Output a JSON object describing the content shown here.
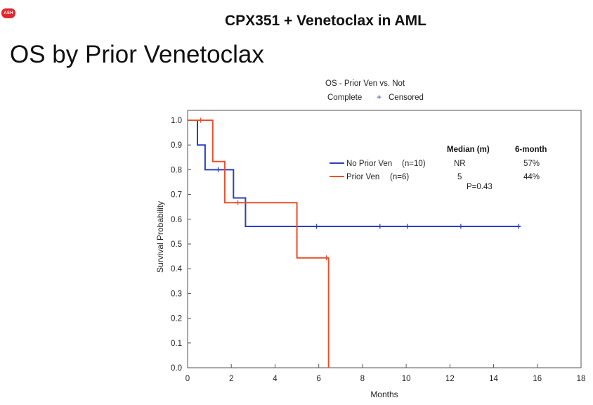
{
  "slide": {
    "logo_text": "ASH",
    "header_title": "CPX351 + Venetoclax in AML",
    "title": "OS by Prior Venetoclax"
  },
  "chart_data": {
    "type": "line",
    "subtype": "kaplan-meier-step",
    "title_lines": [
      "OS - Prior Ven vs. Not",
      "Complete"
    ],
    "censor_legend": "Censored",
    "censor_symbol": "+",
    "xlabel": "Months",
    "ylabel": "Survival Probability",
    "xlim": [
      0,
      18
    ],
    "ylim": [
      0,
      1
    ],
    "xticks": [
      0,
      2,
      4,
      6,
      8,
      10,
      12,
      14,
      16,
      18
    ],
    "yticks": [
      "0.0",
      "0.1",
      "0.2",
      "0.3",
      "0.4",
      "0.5",
      "0.6",
      "0.7",
      "0.8",
      "0.9",
      "1.0"
    ],
    "table_headers": [
      "Median (m)",
      "6-month"
    ],
    "p_value": "P=0.43",
    "series": [
      {
        "name": "No Prior Ven",
        "n_label": "(n=10)",
        "color": "#2b3fc1",
        "median": "NR",
        "six_month": "57%",
        "steps": [
          [
            0,
            1.0
          ],
          [
            0.45,
            1.0
          ],
          [
            0.45,
            0.9
          ],
          [
            0.8,
            0.9
          ],
          [
            0.8,
            0.8
          ],
          [
            2.1,
            0.8
          ],
          [
            2.1,
            0.686
          ],
          [
            2.65,
            0.686
          ],
          [
            2.65,
            0.571
          ],
          [
            15.2,
            0.571
          ]
        ],
        "censored": [
          [
            1.4,
            0.8
          ],
          [
            5.9,
            0.571
          ],
          [
            8.8,
            0.571
          ],
          [
            10.05,
            0.571
          ],
          [
            12.5,
            0.571
          ],
          [
            15.15,
            0.571
          ]
        ]
      },
      {
        "name": "Prior Ven",
        "n_label": "(n=6)",
        "color": "#e8512c",
        "median": "5",
        "six_month": "44%",
        "steps": [
          [
            0,
            1.0
          ],
          [
            1.15,
            1.0
          ],
          [
            1.15,
            0.833
          ],
          [
            1.7,
            0.833
          ],
          [
            1.7,
            0.667
          ],
          [
            5.0,
            0.667
          ],
          [
            5.0,
            0.444
          ],
          [
            6.45,
            0.444
          ],
          [
            6.45,
            0.0
          ]
        ],
        "censored": [
          [
            0.6,
            1.0
          ],
          [
            2.3,
            0.667
          ],
          [
            6.35,
            0.444
          ]
        ]
      }
    ]
  }
}
